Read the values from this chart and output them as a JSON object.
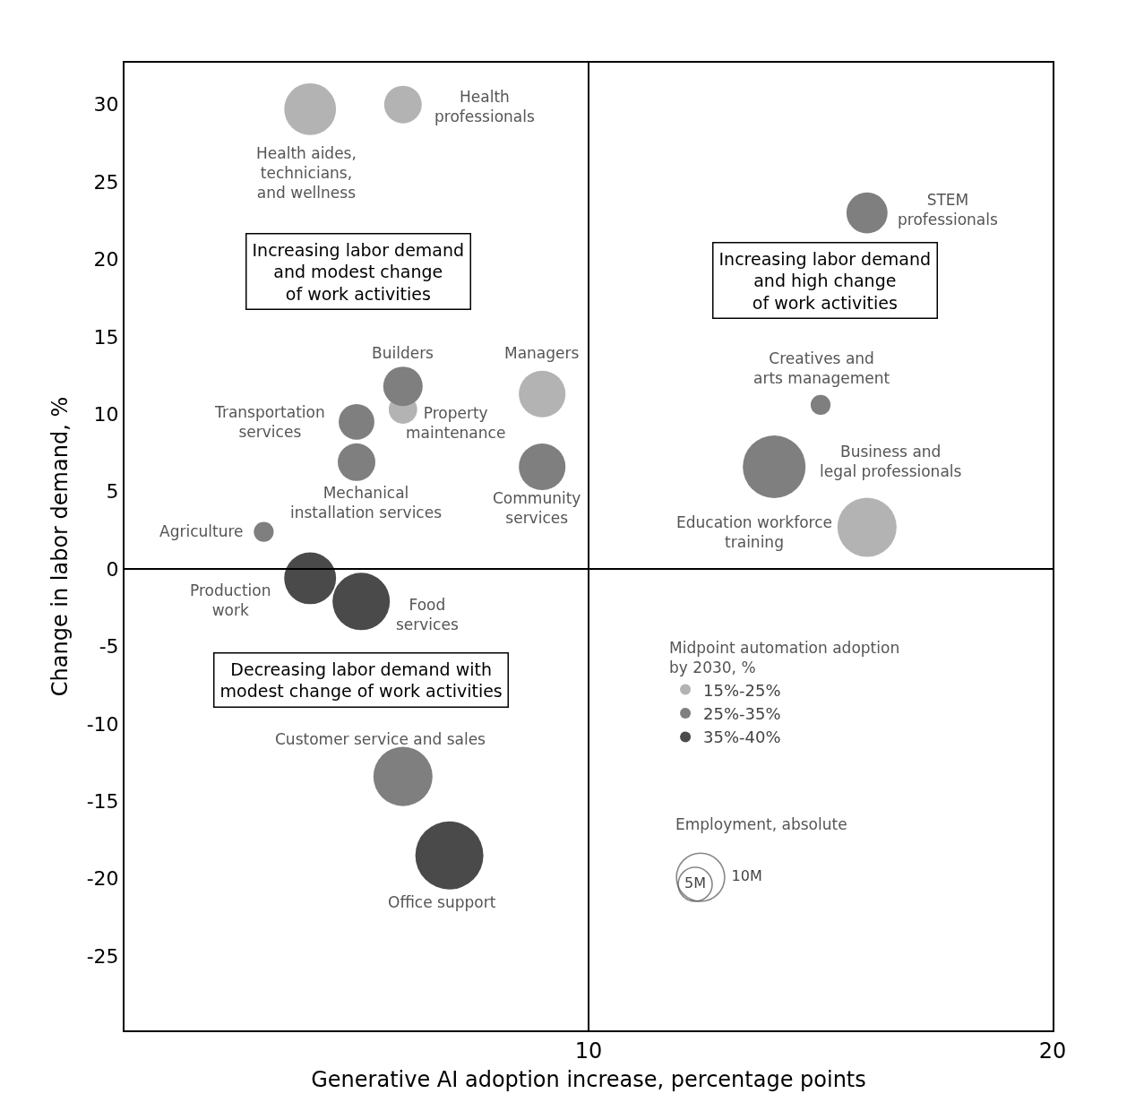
{
  "chart_data": {
    "type": "bubble",
    "xlabel": "Generative AI adoption increase, percentage points",
    "ylabel": "Change in labor demand, %",
    "legend_title": "Midpoint automation adoption by 2030, %",
    "xlim": [
      0,
      20
    ],
    "ylim": [
      -29.8,
      32.7
    ],
    "xticks": [
      10,
      20
    ],
    "yticks": [
      -25,
      -20,
      -15,
      -10,
      -5,
      0,
      5,
      10,
      15,
      20,
      25,
      30
    ],
    "grid": false,
    "legend": "right",
    "size_legend": [
      {
        "value": 5,
        "label": "5M"
      },
      {
        "value": 10,
        "label": "10M"
      }
    ],
    "series": [
      {
        "name": "15%-25%",
        "color": "#b3b3b3",
        "x": [
          4.0,
          6.0,
          6.0,
          9.0,
          16.0
        ],
        "values": [
          29.7,
          30.0,
          10.3,
          11.3,
          2.7
        ],
        "sizes": [
          11.6,
          6.1,
          3.5,
          9.4,
          15.1
        ]
      },
      {
        "name": "25%-35%",
        "color": "#7f7f7f",
        "x": [
          16.0,
          6.0,
          5.0,
          5.0,
          9.0,
          3.0,
          6.0,
          15.0,
          14.0
        ],
        "values": [
          23.0,
          11.8,
          9.5,
          6.9,
          6.6,
          2.4,
          -13.4,
          10.6,
          6.6
        ],
        "sizes": [
          7.3,
          6.7,
          5.5,
          6.1,
          9.4,
          1.7,
          15.1,
          1.7,
          17.0
        ]
      },
      {
        "name": "35%-40%",
        "color": "#4a4a4a",
        "x": [
          4.0,
          5.1,
          7.0
        ],
        "values": [
          -0.6,
          -2.1,
          -18.5
        ],
        "sizes": [
          11.6,
          14.2,
          20.0
        ]
      }
    ],
    "ref_lines": [
      {
        "axis": "x",
        "value": 10,
        "color": "#000000"
      },
      {
        "axis": "y",
        "value": 0,
        "color": "#000000"
      }
    ],
    "annotations": [
      {
        "text": "Health aides, technicians, and wellness",
        "x": 4.0,
        "y": 29.7
      },
      {
        "text": "Health professionals",
        "x": 6.0,
        "y": 30.0
      },
      {
        "text": "STEM professionals",
        "x": 16.0,
        "y": 23.0
      },
      {
        "text": "Builders",
        "x": 6.0,
        "y": 11.8
      },
      {
        "text": "Property maintenance",
        "x": 6.0,
        "y": 10.3
      },
      {
        "text": "Managers",
        "x": 9.0,
        "y": 11.3
      },
      {
        "text": "Transportation services",
        "x": 5.0,
        "y": 9.5
      },
      {
        "text": "Mechanical installation services",
        "x": 5.0,
        "y": 6.9
      },
      {
        "text": "Community services",
        "x": 9.0,
        "y": 6.6
      },
      {
        "text": "Agriculture",
        "x": 3.0,
        "y": 2.4
      },
      {
        "text": "Production work",
        "x": 4.0,
        "y": -0.6
      },
      {
        "text": "Food services",
        "x": 5.1,
        "y": -2.1
      },
      {
        "text": "Customer service and sales",
        "x": 6.0,
        "y": -13.4
      },
      {
        "text": "Office support",
        "x": 7.0,
        "y": -18.5
      },
      {
        "text": "Creatives and arts management",
        "x": 15.0,
        "y": 10.6
      },
      {
        "text": "Business and legal professionals",
        "x": 14.0,
        "y": 6.6
      },
      {
        "text": "Education workforce training",
        "x": 16.0,
        "y": 2.7
      },
      "Increasing labor demand and modest change of work activities",
      "Increasing labor demand and high change of work activities",
      "Decreasing labor demand with modest change of work activities",
      "Employment, absolute"
    ]
  }
}
